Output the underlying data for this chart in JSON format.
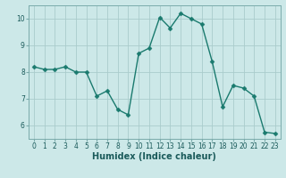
{
  "x": [
    0,
    1,
    2,
    3,
    4,
    5,
    6,
    7,
    8,
    9,
    10,
    11,
    12,
    13,
    14,
    15,
    16,
    17,
    18,
    19,
    20,
    21,
    22,
    23
  ],
  "y": [
    8.2,
    8.1,
    8.1,
    8.2,
    8.0,
    8.0,
    7.1,
    7.3,
    6.6,
    6.4,
    8.7,
    8.9,
    10.05,
    9.65,
    10.2,
    10.0,
    9.8,
    8.4,
    6.7,
    7.5,
    7.4,
    7.1,
    5.75,
    5.7
  ],
  "line_color": "#1a7a6e",
  "marker_color": "#1a7a6e",
  "bg_color": "#cce8e8",
  "grid_color": "#aacccc",
  "xlabel": "Humidex (Indice chaleur)",
  "ylim": [
    5.5,
    10.5
  ],
  "xlim": [
    -0.5,
    23.5
  ],
  "yticks": [
    6,
    7,
    8,
    9,
    10
  ],
  "xticks": [
    0,
    1,
    2,
    3,
    4,
    5,
    6,
    7,
    8,
    9,
    10,
    11,
    12,
    13,
    14,
    15,
    16,
    17,
    18,
    19,
    20,
    21,
    22,
    23
  ],
  "tick_fontsize": 5.5,
  "xlabel_fontsize": 7,
  "line_width": 1.0,
  "marker_size": 2.5
}
